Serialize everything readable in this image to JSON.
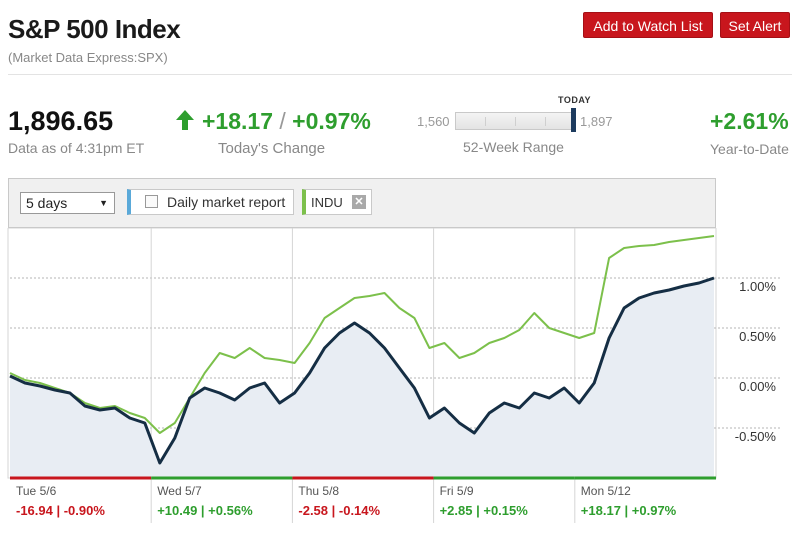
{
  "header": {
    "title": "S&P 500 Index",
    "subtitle": "(Market Data Express:SPX)",
    "watch_label": "Add to Watch List",
    "alert_label": "Set Alert"
  },
  "quote": {
    "price": "1,896.65",
    "as_of": "Data as of 4:31pm ET",
    "change_points": "+18.17",
    "change_sep": "/",
    "change_percent": "+0.97%",
    "change_label": "Today's Change",
    "range_low": "1,560",
    "range_high": "1,897",
    "range_today_label": "TODAY",
    "range_position": 0.96,
    "range_label": "52-Week Range",
    "ytd": "+2.61%",
    "ytd_label": "Year-to-Date",
    "up_color": "#2e9e2e",
    "down_color": "#c8161d"
  },
  "controls": {
    "range_select_value": "5 days",
    "daily_report_label": "Daily market report",
    "daily_report_checked": false,
    "compare_symbol": "INDU",
    "compare_color": "#7cc04b",
    "main_color": "#152e44"
  },
  "chart_data": {
    "type": "line",
    "ylabel": "",
    "ylim": [
      -1.0,
      1.5
    ],
    "y_ticks": [
      "1.00%",
      "0.50%",
      "0.00%",
      "-0.50%"
    ],
    "y_tick_values": [
      1.0,
      0.5,
      0.0,
      -0.5
    ],
    "grid": true,
    "days": [
      {
        "label": "Tue 5/6",
        "change": "-16.94 | -0.90%",
        "direction": "down"
      },
      {
        "label": "Wed 5/7",
        "change": "+10.49 | +0.56%",
        "direction": "up"
      },
      {
        "label": "Thu 5/8",
        "change": "-2.58 | -0.14%",
        "direction": "down"
      },
      {
        "label": "Fri 5/9",
        "change": "+2.85 | +0.15%",
        "direction": "up"
      },
      {
        "label": "Mon 5/12",
        "change": "+18.17 | +0.97%",
        "direction": "up"
      }
    ],
    "series": [
      {
        "name": "",
        "values": [
          0.02,
          -0.05,
          -0.08,
          -0.12,
          -0.15,
          -0.28,
          -0.32,
          -0.3,
          -0.4,
          -0.45,
          -0.85,
          -0.6,
          -0.2,
          -0.1,
          -0.15,
          -0.22,
          -0.1,
          -0.05,
          -0.25,
          -0.15,
          0.05,
          0.3,
          0.45,
          0.55,
          0.45,
          0.3,
          0.1,
          -0.1,
          -0.4,
          -0.3,
          -0.45,
          -0.55,
          -0.35,
          -0.25,
          -0.3,
          -0.15,
          -0.2,
          -0.1,
          -0.25,
          -0.05,
          0.4,
          0.7,
          0.8,
          0.85,
          0.88,
          0.92,
          0.95,
          1.0
        ]
      },
      {
        "name": "INDU",
        "values": [
          0.05,
          -0.02,
          -0.05,
          -0.1,
          -0.15,
          -0.25,
          -0.3,
          -0.28,
          -0.35,
          -0.4,
          -0.55,
          -0.45,
          -0.2,
          0.05,
          0.25,
          0.2,
          0.3,
          0.2,
          0.18,
          0.15,
          0.35,
          0.6,
          0.7,
          0.8,
          0.82,
          0.85,
          0.7,
          0.6,
          0.3,
          0.35,
          0.2,
          0.25,
          0.35,
          0.4,
          0.48,
          0.65,
          0.5,
          0.45,
          0.4,
          0.45,
          1.2,
          1.3,
          1.32,
          1.33,
          1.36,
          1.38,
          1.4,
          1.42
        ]
      }
    ]
  }
}
